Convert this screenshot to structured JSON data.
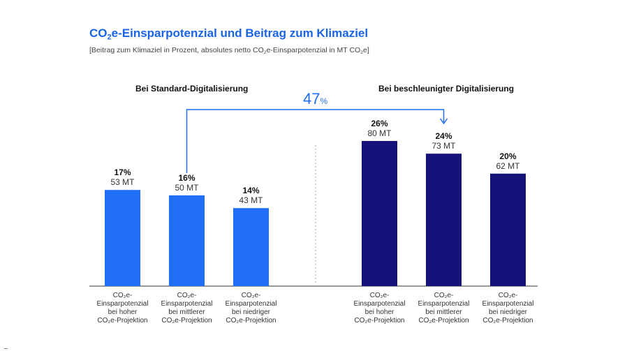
{
  "title_prefix": "CO",
  "title_sub": "2",
  "title_suffix": "e-Einsparpotenzial und Beitrag zum Klimaziel",
  "subtitle_a": "[Beitrag zum Klimaziel in Prozent, absolutes netto CO",
  "subtitle_sub1": "2",
  "subtitle_b": "e-Einsparpotenzial in MT CO",
  "subtitle_sub2": "2",
  "subtitle_c": "e]",
  "colors": {
    "standard": "#1f6ef5",
    "accelerated": "#15127a",
    "connector": "#1f6ef5",
    "axis": "#333333",
    "divider": "#aaaaaa"
  },
  "chart_data": {
    "type": "bar",
    "groups": [
      {
        "name": "Bei Standard-Digitalisierung",
        "color_key": "standard",
        "bars": [
          {
            "percent": "17%",
            "mt_label": "53 MT",
            "value": 53,
            "category": [
              "CO₂e-",
              "Einsparpotenzial",
              "bei hoher",
              "CO₂e-Projektion"
            ]
          },
          {
            "percent": "16%",
            "mt_label": "50 MT",
            "value": 50,
            "category": [
              "CO₂e-",
              "Einsparpotenzial",
              "bei mittlerer",
              "CO₂e-Projektion"
            ]
          },
          {
            "percent": "14%",
            "mt_label": "43 MT",
            "value": 43,
            "category": [
              "CO₂e-",
              "Einsparpotenzial",
              "bei niedriger",
              "CO₂e-Projektion"
            ]
          }
        ]
      },
      {
        "name": "Bei beschleunigter Digitalisierung",
        "color_key": "accelerated",
        "bars": [
          {
            "percent": "26%",
            "mt_label": "80 MT",
            "value": 80,
            "category": [
              "CO₂e-",
              "Einsparpotenzial",
              "bei hoher",
              "CO₂e-Projektion"
            ]
          },
          {
            "percent": "24%",
            "mt_label": "73 MT",
            "value": 73,
            "category": [
              "CO₂e-",
              "Einsparpotenzial",
              "bei mittlerer",
              "CO₂e-Projektion"
            ]
          },
          {
            "percent": "20%",
            "mt_label": "62 MT",
            "value": 62,
            "category": [
              "CO₂e-",
              "Einsparpotenzial",
              "bei niedriger",
              "CO₂e-Projektion"
            ]
          }
        ]
      }
    ],
    "connector": {
      "value": "47",
      "unit": "%"
    },
    "ylim": [
      0,
      100
    ],
    "grid": false
  }
}
